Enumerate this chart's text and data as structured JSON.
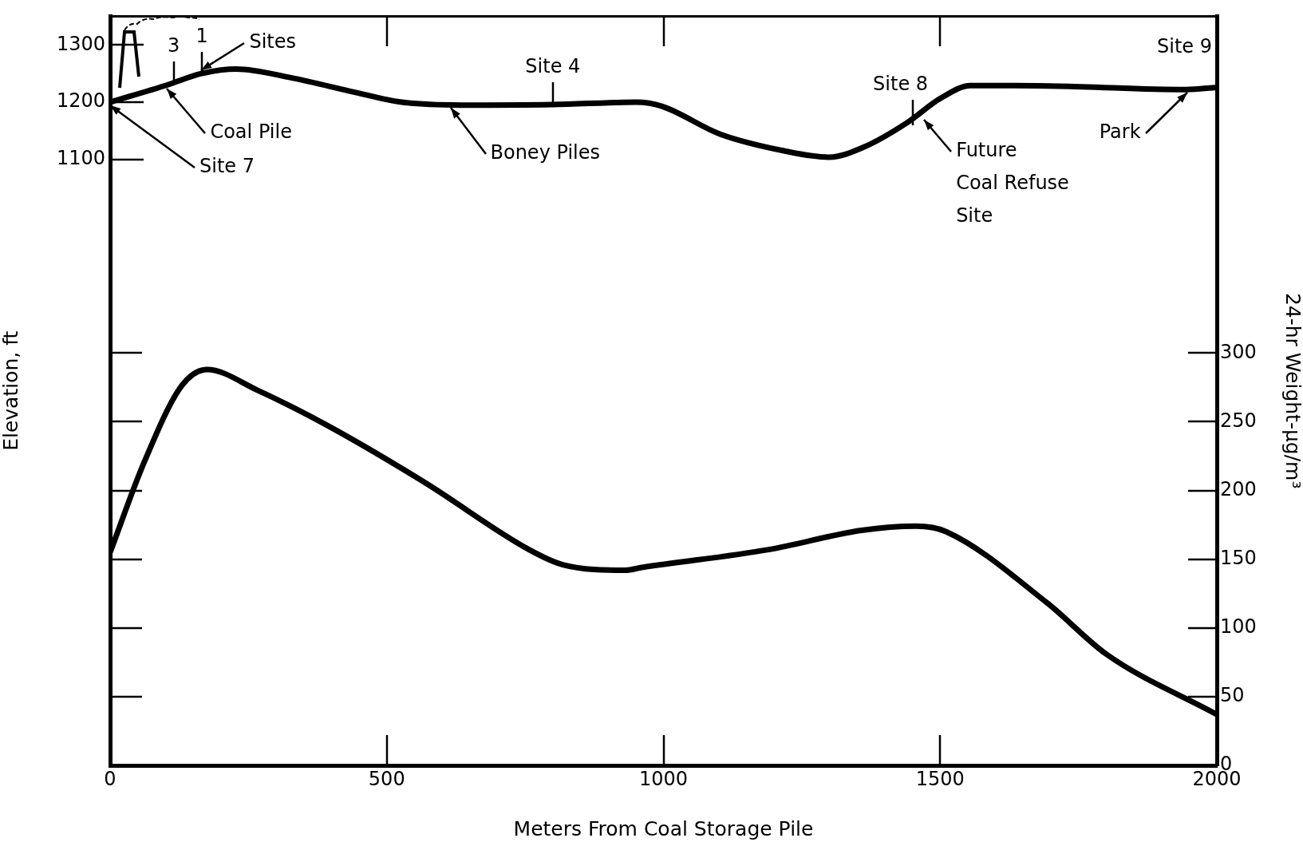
{
  "chart_data": {
    "type": "line",
    "xlabel": "Meters From Coal Storage Pile",
    "ylabel": "Elevation, ft",
    "y2label": "24-hr Weight-µg/m³",
    "xlim": [
      0,
      2000
    ],
    "xticks": [
      0,
      500,
      1000,
      1500,
      2000
    ],
    "ylim": [
      42,
      1350
    ],
    "yticks": [
      1100,
      1200,
      1300
    ],
    "y2lim": [
      0,
      545
    ],
    "y2ticks": [
      0,
      50,
      100,
      150,
      200,
      250,
      300
    ],
    "grid": false,
    "legend": false,
    "marker": "none",
    "line_style": "solid",
    "series": [
      {
        "color": "#000000",
        "axis": "y",
        "x": [
          0,
          103,
          165,
          228,
          330,
          444,
          527,
          633,
          800,
          951,
          997,
          1103,
          1218,
          1299,
          1363,
          1440,
          1501,
          1555,
          1714,
          1944,
          2000
        ],
        "values": [
          1200,
          1230,
          1250,
          1258,
          1242,
          1217,
          1200,
          1195,
          1196,
          1200,
          1193,
          1144,
          1115,
          1104,
          1122,
          1164,
          1207,
          1229,
          1228,
          1222,
          1226
        ]
      },
      {
        "color": "#000000",
        "axis": "y2",
        "x": [
          0,
          62,
          129,
          175,
          266,
          394,
          568,
          757,
          818,
          931,
          961,
          1190,
          1358,
          1457,
          1511,
          1694,
          1800,
          2000
        ],
        "values": [
          155,
          221,
          276,
          288,
          273,
          247,
          206,
          157,
          146,
          142,
          144,
          157,
          171,
          174,
          170,
          118,
          81,
          37
        ]
      }
    ],
    "annotations": [
      {
        "text": "Site 7",
        "x": 0,
        "y": 1200
      },
      {
        "text": "Coal Pile",
        "x": 103,
        "y": 1230
      },
      {
        "text": "Sites",
        "x": 165,
        "y": 1250
      },
      {
        "text": "3",
        "x": 115,
        "y": 1234
      },
      {
        "text": "1",
        "x": 166,
        "y": 1250
      },
      {
        "text": "Site 4",
        "x": 800,
        "y": 1196
      },
      {
        "text": "Boney Piles",
        "x": 615,
        "y": 1196
      },
      {
        "text": "Site 8",
        "x": 1450,
        "y": 1160
      },
      {
        "text": "Future\nCoal Refuse\nSite",
        "x": 1471,
        "y": 1175
      },
      {
        "text": "Site 9",
        "x": 2000,
        "y": 1226
      },
      {
        "text": "Park",
        "x": 1946,
        "y": 1222
      }
    ]
  }
}
